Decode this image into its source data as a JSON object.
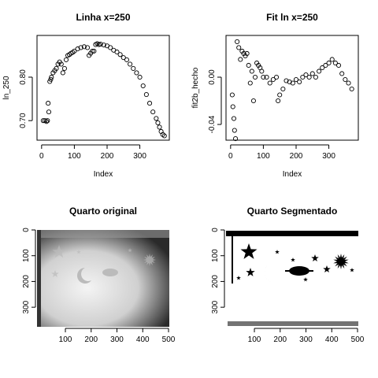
{
  "chart_data": [
    {
      "type": "scatter",
      "title": "Linha x=250",
      "x_label": "Index",
      "y_label": "ln_250",
      "x": [
        5,
        10,
        15,
        18,
        20,
        22,
        25,
        28,
        30,
        35,
        40,
        45,
        50,
        55,
        60,
        65,
        70,
        75,
        80,
        85,
        90,
        95,
        100,
        110,
        120,
        130,
        140,
        145,
        150,
        155,
        160,
        165,
        170,
        175,
        180,
        190,
        200,
        210,
        220,
        230,
        240,
        250,
        260,
        270,
        280,
        290,
        300,
        310,
        320,
        330,
        340,
        350,
        355,
        360,
        365,
        370,
        375
      ],
      "values": [
        0.7,
        0.7,
        0.698,
        0.7,
        0.74,
        0.72,
        0.79,
        0.795,
        0.8,
        0.81,
        0.815,
        0.82,
        0.83,
        0.835,
        0.83,
        0.81,
        0.82,
        0.84,
        0.85,
        0.852,
        0.855,
        0.857,
        0.86,
        0.865,
        0.868,
        0.87,
        0.868,
        0.85,
        0.855,
        0.86,
        0.86,
        0.875,
        0.877,
        0.875,
        0.876,
        0.874,
        0.872,
        0.868,
        0.862,
        0.858,
        0.852,
        0.845,
        0.84,
        0.83,
        0.82,
        0.81,
        0.8,
        0.78,
        0.76,
        0.74,
        0.72,
        0.705,
        0.695,
        0.685,
        0.675,
        0.668,
        0.665
      ],
      "color": "#000000",
      "xlim": [
        -14,
        390
      ],
      "xticks": [
        0,
        100,
        200,
        300
      ],
      "ylim": [
        0.655,
        0.896
      ],
      "yticks": [
        {
          "value": 0.7,
          "label": "0.70"
        },
        {
          "value": 0.8,
          "label": "0.80"
        }
      ]
    },
    {
      "type": "scatter",
      "title": "Fit ln x=250",
      "x_label": "Index",
      "y_label": "fit2b_hecho",
      "x": [
        5,
        7,
        10,
        12,
        15,
        20,
        25,
        30,
        35,
        40,
        45,
        50,
        55,
        60,
        65,
        70,
        75,
        80,
        85,
        90,
        95,
        100,
        110,
        120,
        130,
        140,
        145,
        150,
        160,
        170,
        180,
        190,
        200,
        210,
        220,
        230,
        240,
        250,
        260,
        270,
        280,
        290,
        300,
        310,
        320,
        330,
        340,
        350,
        360,
        370
      ],
      "values": [
        -0.015,
        -0.025,
        -0.035,
        -0.045,
        -0.052,
        0.03,
        0.025,
        0.015,
        0.022,
        0.02,
        0.018,
        0.02,
        0.01,
        -0.005,
        0.005,
        -0.02,
        0.0,
        0.012,
        0.01,
        0.008,
        0.005,
        0.0,
        0.0,
        -0.005,
        -0.002,
        0.0,
        -0.02,
        -0.015,
        -0.01,
        -0.003,
        -0.004,
        -0.005,
        -0.002,
        -0.004,
        0.0,
        0.002,
        0.0,
        0.003,
        0.0,
        0.005,
        0.008,
        0.01,
        0.012,
        0.015,
        0.012,
        0.01,
        0.003,
        -0.002,
        -0.005,
        -0.01
      ],
      "color": "#000000",
      "xlim": [
        -14,
        390
      ],
      "xticks": [
        0,
        100,
        200,
        300
      ],
      "ylim": [
        -0.0533,
        0.0353
      ],
      "yticks": [
        {
          "value": -0.04,
          "label": "-0.04"
        },
        {
          "value": 0,
          "label": "0.00"
        }
      ]
    },
    {
      "type": "image",
      "title": "Quarto original",
      "xlim": [
        -10,
        503
      ],
      "xticks": [
        100,
        200,
        300,
        400,
        500
      ],
      "ylim": [
        376,
        0
      ],
      "yticks": [
        0,
        100,
        200,
        300
      ]
    },
    {
      "type": "image",
      "title": "Quarto Segmentado",
      "xlim": [
        -10,
        503
      ],
      "xticks": [
        100,
        200,
        300,
        400,
        500
      ],
      "ylim": [
        376,
        0
      ],
      "yticks": [
        0,
        100,
        200,
        300
      ]
    }
  ]
}
